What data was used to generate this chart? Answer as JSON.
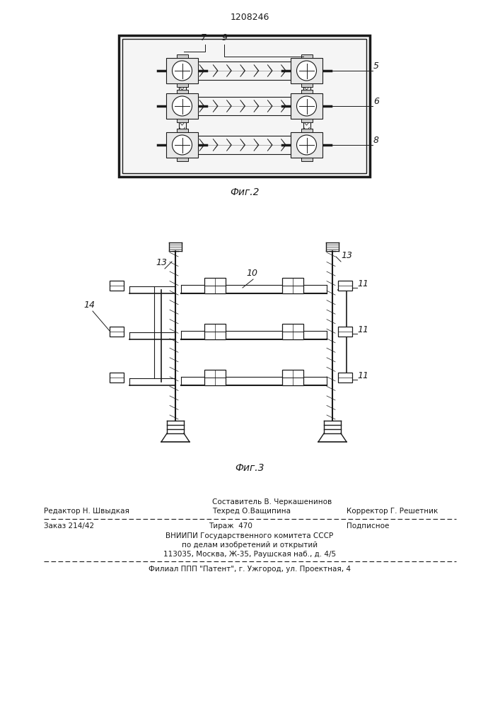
{
  "patent_number": "1208246",
  "fig2_label": "Фиг.2",
  "fig3_label": "Фиг.3",
  "footer_line1_left": "Редактор Н. Швыдкая",
  "footer_line1_center": "Составитель В. Черкашенинов",
  "footer_line2_center": "Техред О.Ващипина",
  "footer_line2_right": "Корректор Г. Решетник",
  "footer_line3_left": "Заказ 214/42",
  "footer_line3_center": "Тираж  470",
  "footer_line3_right": "Подписное",
  "footer_org1": "ВНИИПИ Государственного комитета СССР",
  "footer_org2": "по делам изобретений и открытий",
  "footer_org3": "113035, Москва, Ж-35, Раушская наб., д. 4/5",
  "footer_branch": "Филиал ППП \"Патент\", г. Ужгород, ул. Проектная, 4",
  "bg_color": "#ffffff",
  "line_color": "#1a1a1a"
}
